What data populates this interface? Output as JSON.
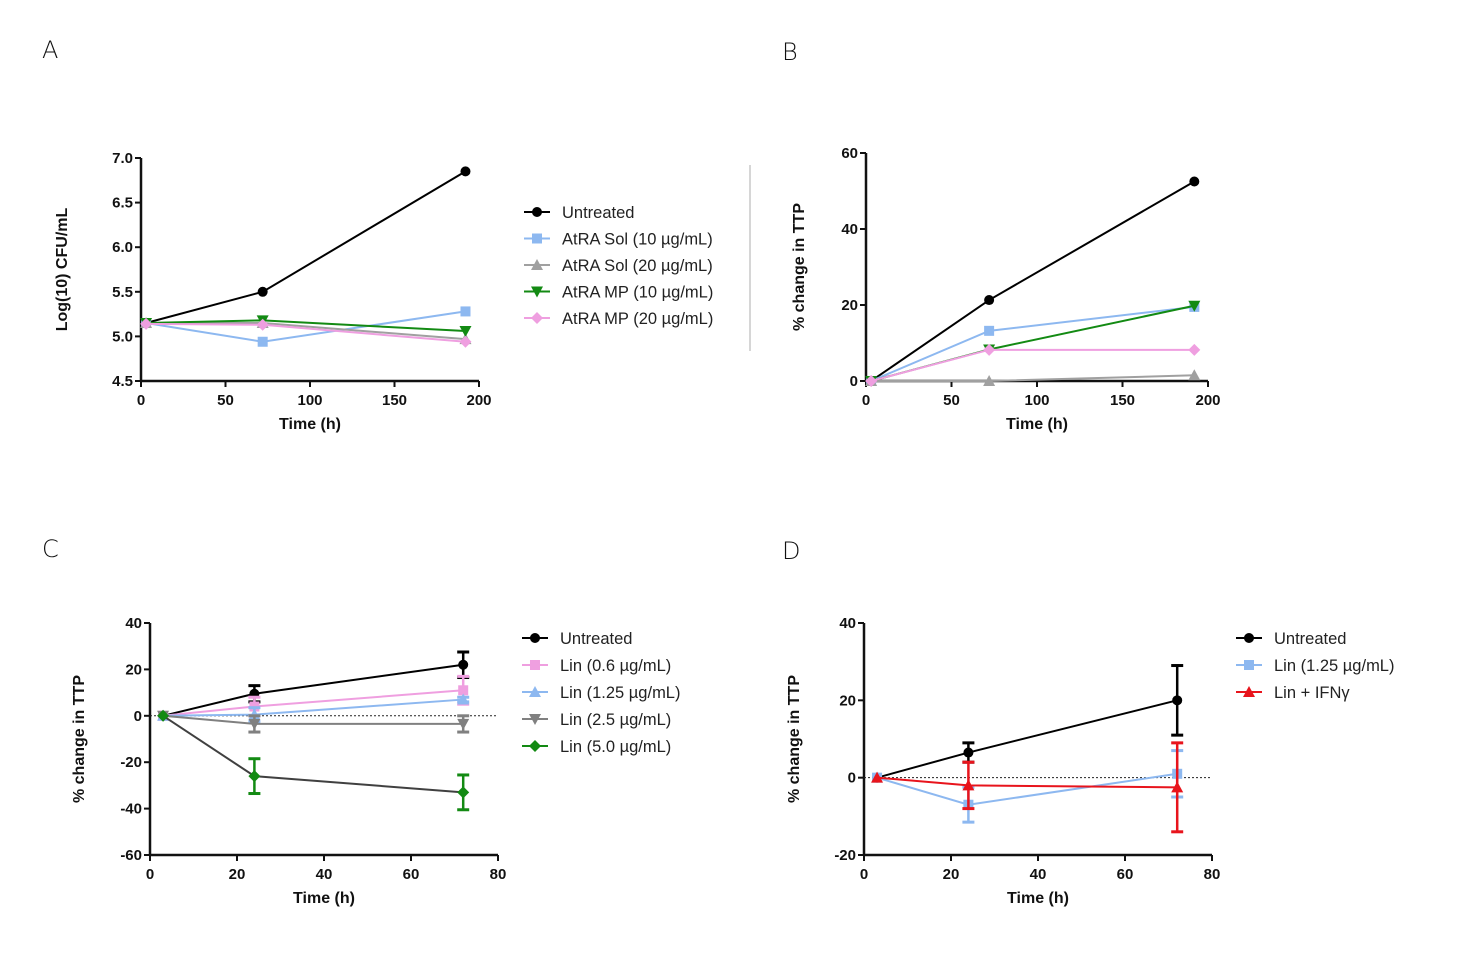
{
  "panels": [
    "A",
    "B",
    "C",
    "D"
  ],
  "chart_data": [
    {
      "panel": "A",
      "type": "line",
      "title": "",
      "xlabel": "Time (h)",
      "ylabel": "Log(10) CFU/mL",
      "xlim": [
        0,
        200
      ],
      "ylim": [
        4.5,
        7.0
      ],
      "xticks": [
        "0",
        "50",
        "100",
        "150",
        "200"
      ],
      "yticks": [
        "4.5",
        "5.0",
        "5.5",
        "6.0",
        "6.5",
        "7.0"
      ],
      "xtick_values": [
        0,
        50,
        100,
        150,
        200
      ],
      "ytick_values": [
        4.5,
        5.0,
        5.5,
        6.0,
        6.5,
        7.0
      ],
      "legend_position": "right",
      "x": [
        3,
        72,
        192
      ],
      "series": [
        {
          "name": "Untreated",
          "color": "#000000",
          "line_color": "#000000",
          "marker": "circle",
          "values": [
            5.15,
            5.5,
            6.85
          ]
        },
        {
          "name": "AtRA Sol (10 µg/mL)",
          "color": "#8db8f0",
          "line_color": "#8db8f0",
          "marker": "square",
          "values": [
            5.15,
            4.94,
            5.28
          ]
        },
        {
          "name": "AtRA Sol (20 µg/mL)",
          "color": "#a0a0a0",
          "line_color": "#a0a0a0",
          "marker": "triangle-up",
          "values": [
            5.15,
            5.15,
            4.97
          ]
        },
        {
          "name": "AtRA MP (10 µg/mL)",
          "color": "#138a13",
          "line_color": "#138a13",
          "marker": "triangle-down",
          "values": [
            5.15,
            5.18,
            5.06
          ]
        },
        {
          "name": "AtRA MP (20 µg/mL)",
          "color": "#ef9fe0",
          "line_color": "#ef9fe0",
          "marker": "diamond",
          "values": [
            5.14,
            5.13,
            4.94
          ]
        }
      ]
    },
    {
      "panel": "B",
      "type": "line",
      "title": "",
      "xlabel": "Time (h)",
      "ylabel": "% change in TTP",
      "xlim": [
        0,
        200
      ],
      "ylim": [
        0,
        60
      ],
      "xticks": [
        "0",
        "50",
        "100",
        "150",
        "200"
      ],
      "yticks": [
        "0",
        "20",
        "40",
        "60"
      ],
      "xtick_values": [
        0,
        50,
        100,
        150,
        200
      ],
      "ytick_values": [
        0,
        20,
        40,
        60
      ],
      "legend_position": "none (shared with A)",
      "x": [
        3,
        72,
        192
      ],
      "series": [
        {
          "name": "Untreated",
          "color": "#000000",
          "line_color": "#000000",
          "marker": "circle",
          "values": [
            0,
            21.3,
            52.5
          ]
        },
        {
          "name": "AtRA Sol (10 µg/mL)",
          "color": "#8db8f0",
          "line_color": "#8db8f0",
          "marker": "square",
          "values": [
            0,
            13.2,
            19.5
          ]
        },
        {
          "name": "AtRA Sol (20 µg/mL)",
          "color": "#a0a0a0",
          "line_color": "#a0a0a0",
          "marker": "triangle-up",
          "values": [
            0,
            0,
            1.5
          ]
        },
        {
          "name": "AtRA MP (10 µg/mL)",
          "color": "#138a13",
          "line_color": "#138a13",
          "marker": "triangle-down",
          "values": [
            0,
            8.3,
            19.8
          ]
        },
        {
          "name": "AtRA MP (20 µg/mL)",
          "color": "#ef9fe0",
          "line_color": "#ef9fe0",
          "marker": "diamond",
          "values": [
            0,
            8.2,
            8.2
          ]
        }
      ]
    },
    {
      "panel": "C",
      "type": "line",
      "title": "",
      "xlabel": "Time (h)",
      "ylabel": "% change in TTP",
      "xlim": [
        0,
        80
      ],
      "ylim": [
        -60,
        40
      ],
      "xticks": [
        "0",
        "20",
        "40",
        "60",
        "80"
      ],
      "yticks": [
        "-60",
        "-40",
        "-20",
        "0",
        "20",
        "40"
      ],
      "xtick_values": [
        0,
        20,
        40,
        60,
        80
      ],
      "ytick_values": [
        -60,
        -40,
        -20,
        0,
        20,
        40
      ],
      "zero_reference_line": true,
      "legend_position": "right",
      "x": [
        3,
        24,
        72
      ],
      "series": [
        {
          "name": "Untreated",
          "color": "#000000",
          "line_color": "#000000",
          "marker": "circle",
          "values": [
            0,
            9.5,
            22
          ],
          "errors": [
            0,
            3.5,
            5.5
          ]
        },
        {
          "name": "Lin (0.6 µg/mL)",
          "color": "#ef9fe0",
          "line_color": "#ef9fe0",
          "marker": "square",
          "values": [
            0,
            4,
            11
          ],
          "errors": [
            0,
            4,
            6
          ]
        },
        {
          "name": "Lin (1.25 µg/mL)",
          "color": "#8db8f0",
          "line_color": "#8db8f0",
          "marker": "triangle-up",
          "values": [
            0,
            0.5,
            7
          ],
          "errors": [
            0,
            3,
            1
          ]
        },
        {
          "name": "Lin (2.5 µg/mL)",
          "color": "#808080",
          "line_color": "#808080",
          "marker": "triangle-down",
          "values": [
            0,
            -3.5,
            -3.5
          ],
          "errors": [
            0,
            3.5,
            3.5
          ]
        },
        {
          "name": "Lin (5.0 µg/mL)",
          "color": "#138a13",
          "line_color": "#404040",
          "marker": "diamond",
          "values": [
            0,
            -26,
            -33
          ],
          "errors": [
            0,
            7.5,
            7.5
          ]
        }
      ]
    },
    {
      "panel": "D",
      "type": "line",
      "title": "",
      "xlabel": "Time (h)",
      "ylabel": "% change in TTP",
      "xlim": [
        0,
        80
      ],
      "ylim": [
        -20,
        40
      ],
      "xticks": [
        "0",
        "20",
        "40",
        "60",
        "80"
      ],
      "yticks": [
        "-20",
        "0",
        "20",
        "40"
      ],
      "xtick_values": [
        0,
        20,
        40,
        60,
        80
      ],
      "ytick_values": [
        -20,
        0,
        20,
        40
      ],
      "zero_reference_line": true,
      "legend_position": "right",
      "x": [
        3,
        24,
        72
      ],
      "series": [
        {
          "name": "Untreated",
          "color": "#000000",
          "line_color": "#000000",
          "marker": "circle",
          "values": [
            0,
            6.5,
            20
          ],
          "errors": [
            0,
            2.5,
            9
          ]
        },
        {
          "name": "Lin (1.25 µg/mL)",
          "color": "#8db8f0",
          "line_color": "#8db8f0",
          "marker": "square",
          "values": [
            0,
            -7,
            1
          ],
          "errors": [
            0,
            4.5,
            6
          ]
        },
        {
          "name": "Lin + IFNγ",
          "color": "#e8141c",
          "line_color": "#e8141c",
          "marker": "triangle-up",
          "values": [
            0,
            -2,
            -2.5
          ],
          "errors": [
            0,
            6,
            11.5
          ]
        }
      ]
    }
  ]
}
